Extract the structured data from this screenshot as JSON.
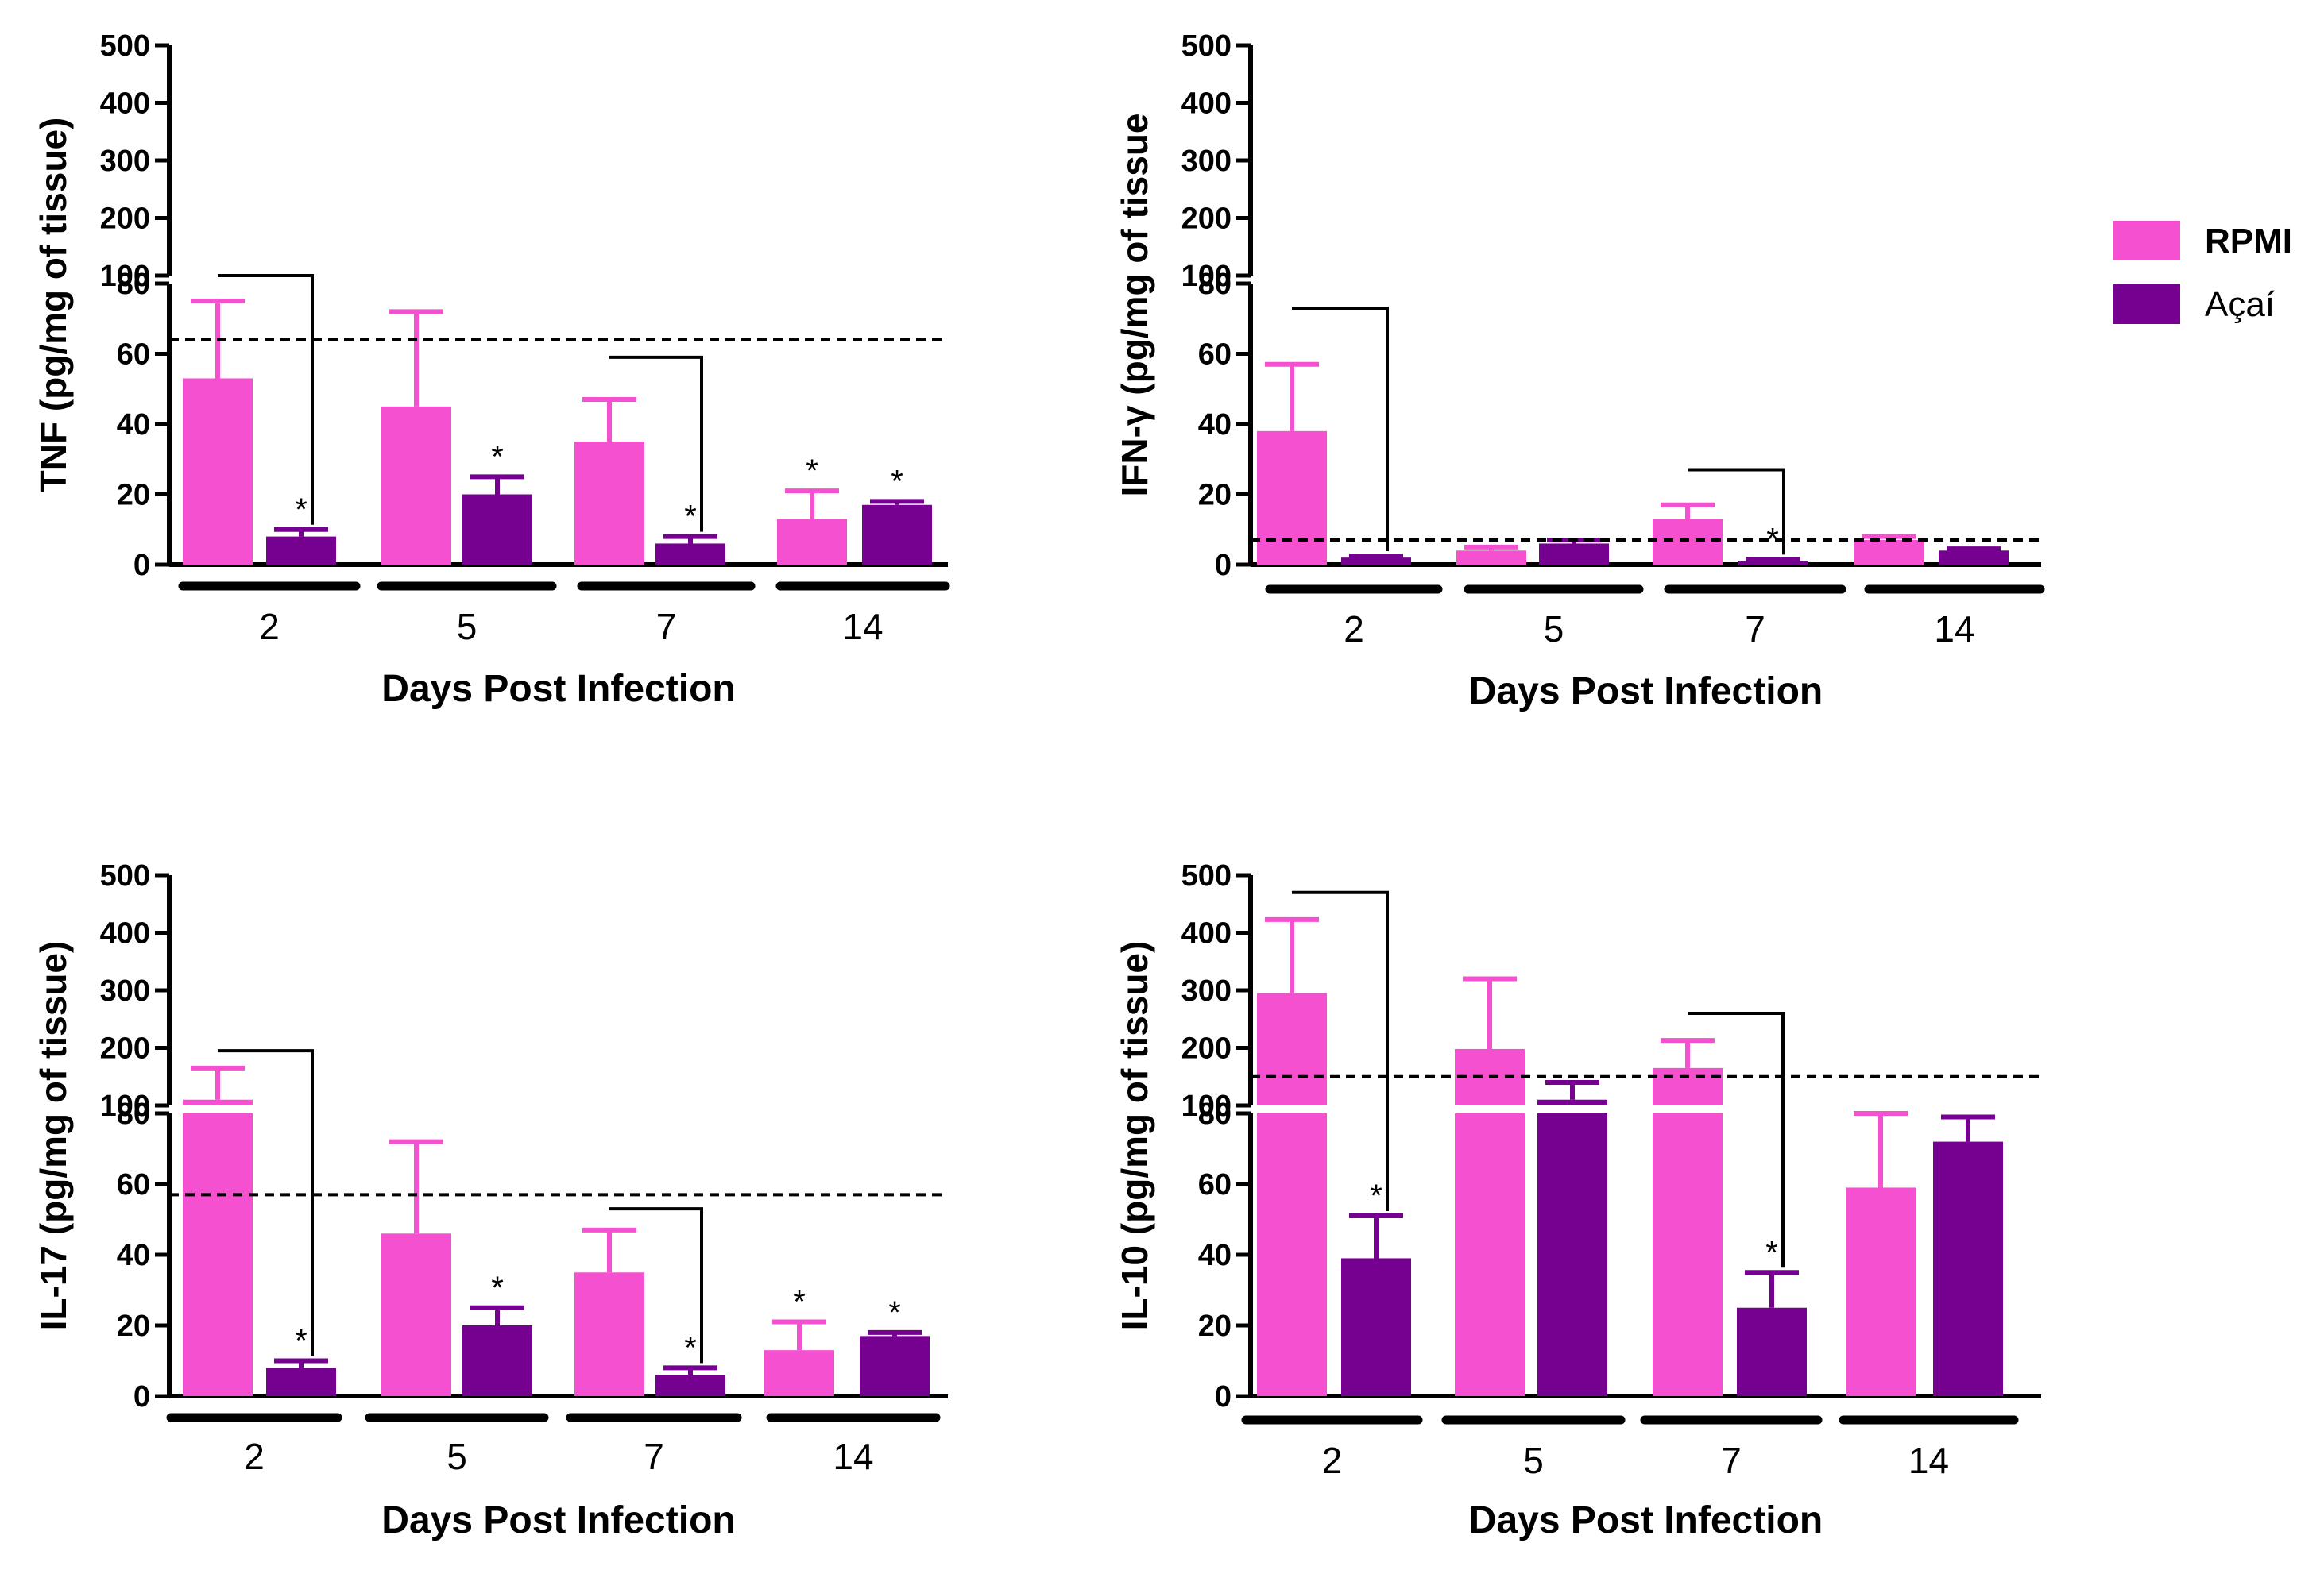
{
  "colors": {
    "rpmi": "#f550d0",
    "acai": "#760090"
  },
  "legend": [
    {
      "name": "RPMI",
      "bold": true,
      "color": "#f550d0"
    },
    {
      "name": "Açaí",
      "bold": false,
      "color": "#760090"
    }
  ],
  "chart_data": [
    {
      "type": "bar",
      "ylabel": "TNF (pg/mg of tissue)",
      "xlabel": "Days Post Infection",
      "categories": [
        "2",
        "5",
        "7",
        "14"
      ],
      "y_lower_ticks": [
        "0",
        "20",
        "40",
        "60",
        "80"
      ],
      "y_upper_ticks": [
        "100",
        "200",
        "300",
        "400",
        "500"
      ],
      "threshold": 64,
      "series": [
        {
          "name": "RPMI",
          "values": [
            53,
            45,
            35,
            13
          ],
          "errors": [
            22,
            27,
            12,
            8
          ]
        },
        {
          "name": "Açaí",
          "values": [
            8,
            20,
            6,
            17
          ],
          "errors": [
            2,
            5,
            2,
            1
          ]
        }
      ],
      "stars": [
        {
          "series": 1,
          "category": 0,
          "text": "*"
        },
        {
          "series": 1,
          "category": 1,
          "text": "*"
        },
        {
          "series": 1,
          "category": 2,
          "text": "*"
        },
        {
          "series": 0,
          "category": 3,
          "text": "*"
        },
        {
          "series": 1,
          "category": 3,
          "text": "*"
        }
      ],
      "brackets": [
        {
          "category": 0,
          "level": 100
        },
        {
          "category": 2,
          "level": 59
        }
      ]
    },
    {
      "type": "bar",
      "ylabel": "IFN-γ (pg/mg of tissue",
      "xlabel": "Days Post Infection",
      "categories": [
        "2",
        "5",
        "7",
        "14"
      ],
      "y_lower_ticks": [
        "0",
        "20",
        "40",
        "60",
        "80"
      ],
      "y_upper_ticks": [
        "100",
        "200",
        "300",
        "400",
        "500"
      ],
      "threshold": 7,
      "series": [
        {
          "name": "RPMI",
          "values": [
            38,
            4,
            13,
            7
          ],
          "errors": [
            19,
            1,
            4,
            1
          ]
        },
        {
          "name": "Açaí",
          "values": [
            2,
            6,
            1,
            4
          ],
          "errors": [
            0.5,
            1,
            0.5,
            0.5
          ]
        }
      ],
      "stars": [
        {
          "series": 1,
          "category": 2,
          "text": "*"
        }
      ],
      "brackets": [
        {
          "category": 0,
          "level": 73
        },
        {
          "category": 2,
          "level": 27
        }
      ]
    },
    {
      "type": "bar",
      "ylabel": "IL-17 (pg/mg of tissue)",
      "xlabel": "Days Post Infection",
      "categories": [
        "2",
        "5",
        "7",
        "14"
      ],
      "y_lower_ticks": [
        "0",
        "20",
        "40",
        "60",
        "80"
      ],
      "y_upper_ticks": [
        "100",
        "200",
        "300",
        "400",
        "500"
      ],
      "threshold": 57,
      "series": [
        {
          "name": "RPMI",
          "values": [
            110,
            46,
            35,
            13
          ],
          "errors": [
            55,
            26,
            12,
            8
          ]
        },
        {
          "name": "Açaí",
          "values": [
            8,
            20,
            6,
            17
          ],
          "errors": [
            2,
            5,
            2,
            1
          ]
        }
      ],
      "stars": [
        {
          "series": 1,
          "category": 0,
          "text": "*"
        },
        {
          "series": 1,
          "category": 1,
          "text": "*"
        },
        {
          "series": 1,
          "category": 2,
          "text": "*"
        },
        {
          "series": 0,
          "category": 3,
          "text": "*"
        },
        {
          "series": 1,
          "category": 3,
          "text": "*"
        }
      ],
      "brackets": [
        {
          "category": 0,
          "level": 195
        },
        {
          "category": 2,
          "level": 53
        }
      ]
    },
    {
      "type": "bar",
      "ylabel": "IL-10 (pg/mg of tissue)",
      "xlabel": "Days Post Infection",
      "categories": [
        "2",
        "5",
        "7",
        "14"
      ],
      "y_lower_ticks": [
        "0",
        "20",
        "40",
        "60",
        "80"
      ],
      "y_upper_ticks": [
        "100",
        "200",
        "300",
        "400",
        "500"
      ],
      "threshold": 150,
      "series": [
        {
          "name": "RPMI",
          "values": [
            295,
            198,
            165,
            59
          ],
          "errors": [
            128,
            122,
            48,
            21
          ]
        },
        {
          "name": "Açaí",
          "values": [
            39,
            110,
            25,
            72
          ],
          "errors": [
            12,
            30,
            10,
            7
          ]
        }
      ],
      "stars": [
        {
          "series": 1,
          "category": 0,
          "text": "*"
        },
        {
          "series": 1,
          "category": 2,
          "text": "*"
        }
      ],
      "brackets": [
        {
          "category": 0,
          "level": 470
        },
        {
          "category": 2,
          "level": 260
        }
      ]
    }
  ]
}
